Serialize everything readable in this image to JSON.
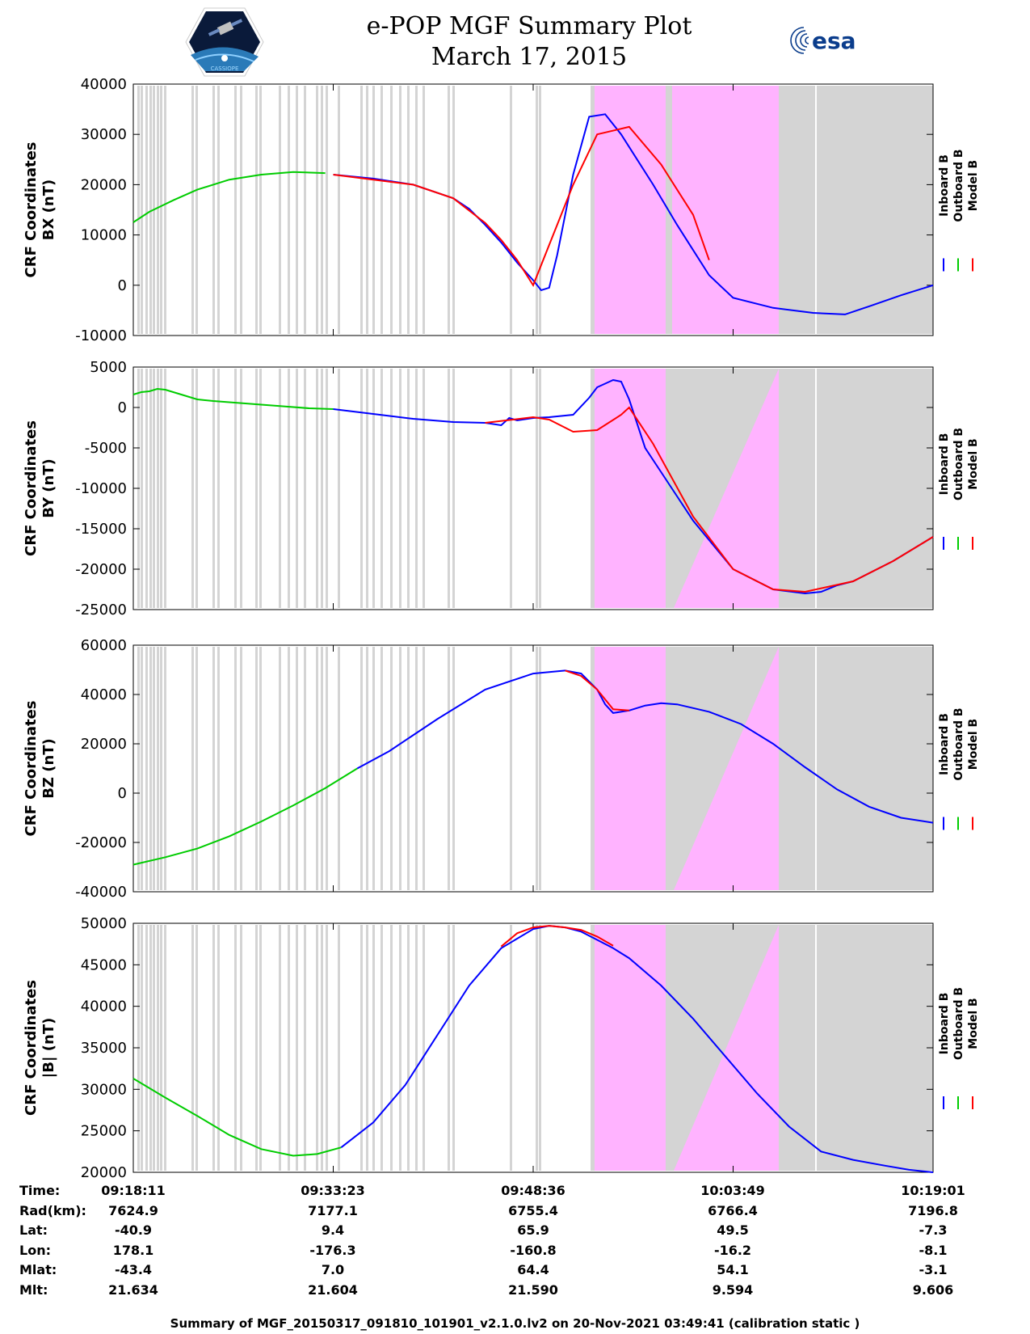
{
  "header": {
    "title_line1": "e-POP MGF Summary Plot",
    "title_line2": "March 17, 2015",
    "logo_left_text": "CASSIOPE",
    "logo_right_text": "esa"
  },
  "legend": [
    "Inboard B",
    "Outboard B",
    "Model B"
  ],
  "colors": {
    "inboard": "#0000ff",
    "outboard": "#00cc00",
    "model": "#ff0000",
    "gap": "#d4d4d4",
    "flag": "#ffb3ff"
  },
  "chart_data": [
    {
      "type": "line",
      "ylabel_line1": "CRF Coordinates",
      "ylabel_line2": "BX (nT)",
      "ylim": [
        -10000,
        40000
      ],
      "yticks": [
        "40000",
        "30000",
        "20000",
        "10000",
        "0",
        "-10000"
      ],
      "ytick_values": [
        40000,
        30000,
        20000,
        10000,
        0,
        -10000
      ],
      "series": [
        {
          "name": "Outboard B",
          "x": [
            0,
            2,
            5,
            8,
            12,
            16,
            20,
            24
          ],
          "values": [
            12500,
            14600,
            16900,
            19000,
            21000,
            22000,
            22500,
            22300
          ]
        },
        {
          "name": "Inboard B",
          "x": [
            25,
            30,
            35,
            40,
            42,
            44,
            46,
            48,
            50,
            51,
            52,
            53,
            55,
            57,
            59,
            61,
            63,
            65,
            68,
            70,
            72,
            75,
            80,
            85,
            89,
            92,
            96,
            100
          ],
          "values": [
            22000,
            21200,
            20000,
            17300,
            15200,
            12000,
            8500,
            4500,
            1000,
            -1000,
            -500,
            6000,
            22000,
            33500,
            34000,
            30000,
            25000,
            20000,
            12000,
            7000,
            2000,
            -2500,
            -4500,
            -5500,
            -5800,
            -4200,
            -2000,
            0
          ]
        },
        {
          "name": "Model B",
          "x": [
            25,
            35,
            40,
            44,
            46,
            48,
            50,
            52,
            55,
            58,
            62,
            66,
            70,
            72
          ],
          "values": [
            22000,
            20000,
            17300,
            12400,
            9000,
            5000,
            0,
            8000,
            20000,
            30000,
            31500,
            24000,
            14000,
            5000
          ]
        }
      ]
    },
    {
      "type": "line",
      "ylabel_line1": "CRF Coordinates",
      "ylabel_line2": "BY (nT)",
      "ylim": [
        -25000,
        5000
      ],
      "yticks": [
        "5000",
        "0",
        "-5000",
        "-10000",
        "-15000",
        "-20000",
        "-25000"
      ],
      "ytick_values": [
        5000,
        0,
        -5000,
        -10000,
        -15000,
        -20000,
        -25000
      ],
      "series": [
        {
          "name": "Outboard B",
          "x": [
            0,
            1,
            2,
            3,
            4,
            6,
            8,
            10,
            14,
            18,
            22,
            25
          ],
          "values": [
            1600,
            1900,
            2000,
            2300,
            2200,
            1600,
            1000,
            800,
            500,
            200,
            -100,
            -200
          ]
        },
        {
          "name": "Inboard B",
          "x": [
            25,
            30,
            35,
            40,
            44,
            46,
            47,
            48,
            50,
            52,
            55,
            57,
            58,
            60,
            61,
            62,
            64,
            66,
            70,
            75,
            80,
            84,
            86,
            88,
            90,
            95,
            100
          ],
          "values": [
            -200,
            -800,
            -1400,
            -1800,
            -1900,
            -2200,
            -1300,
            -1600,
            -1300,
            -1200,
            -900,
            1200,
            2500,
            3400,
            3200,
            1000,
            -5000,
            -8000,
            -14000,
            -20000,
            -22500,
            -23000,
            -22800,
            -22000,
            -21500,
            -19000,
            -16000
          ]
        },
        {
          "name": "Model B",
          "x": [
            44,
            50,
            52,
            55,
            58,
            61,
            62,
            65,
            70,
            75,
            80,
            84,
            90,
            95,
            100
          ],
          "values": [
            -1900,
            -1200,
            -1500,
            -3000,
            -2800,
            -900,
            0,
            -4500,
            -13500,
            -20000,
            -22500,
            -22800,
            -21500,
            -19000,
            -16000
          ]
        }
      ]
    },
    {
      "type": "line",
      "ylabel_line1": "CRF Coordinates",
      "ylabel_line2": "BZ (nT)",
      "ylim": [
        -40000,
        60000
      ],
      "yticks": [
        "60000",
        "40000",
        "20000",
        "0",
        "-20000",
        "-40000"
      ],
      "ytick_values": [
        60000,
        40000,
        20000,
        0,
        -20000,
        -40000
      ],
      "series": [
        {
          "name": "Outboard B",
          "x": [
            0,
            4,
            8,
            12,
            16,
            20,
            24,
            28
          ],
          "values": [
            -29000,
            -26000,
            -22500,
            -17500,
            -11500,
            -5000,
            2000,
            10000
          ]
        },
        {
          "name": "Inboard B",
          "x": [
            28,
            32,
            38,
            44,
            50,
            54,
            56,
            58,
            59,
            60,
            62,
            64,
            66,
            68,
            72,
            76,
            80,
            84,
            88,
            92,
            96,
            100
          ],
          "values": [
            10000,
            17000,
            30000,
            42000,
            48500,
            49700,
            48500,
            42000,
            36000,
            32500,
            33500,
            35500,
            36500,
            36000,
            33000,
            28000,
            20000,
            10500,
            1500,
            -5500,
            -10000,
            -12000
          ]
        },
        {
          "name": "Model B",
          "x": [
            54,
            56,
            58,
            60,
            62
          ],
          "values": [
            49700,
            47500,
            42000,
            34000,
            33500
          ]
        }
      ]
    },
    {
      "type": "line",
      "ylabel_line1": "CRF Coordinates",
      "ylabel_line2": "|B| (nT)",
      "ylim": [
        20000,
        50000
      ],
      "yticks": [
        "50000",
        "45000",
        "40000",
        "35000",
        "30000",
        "25000",
        "20000"
      ],
      "ytick_values": [
        50000,
        45000,
        40000,
        35000,
        30000,
        25000,
        20000
      ],
      "series": [
        {
          "name": "Outboard B",
          "x": [
            0,
            4,
            8,
            12,
            16,
            20,
            23,
            26
          ],
          "values": [
            31300,
            29000,
            26800,
            24500,
            22800,
            22000,
            22200,
            23000
          ]
        },
        {
          "name": "Inboard B",
          "x": [
            26,
            30,
            34,
            38,
            42,
            46,
            50,
            52,
            54,
            56,
            58,
            60,
            62,
            66,
            70,
            74,
            78,
            82,
            86,
            90,
            94,
            97,
            100
          ],
          "values": [
            23000,
            26000,
            30500,
            36500,
            42500,
            47000,
            49300,
            49700,
            49500,
            49000,
            48000,
            47000,
            45800,
            42500,
            38500,
            34000,
            29500,
            25500,
            22500,
            21500,
            20800,
            20300,
            20000
          ]
        },
        {
          "name": "Model B",
          "x": [
            46,
            48,
            50,
            52,
            54,
            56,
            58,
            60
          ],
          "values": [
            47200,
            48800,
            49500,
            49700,
            49500,
            49200,
            48400,
            47300
          ]
        }
      ]
    }
  ],
  "info": {
    "labels": [
      "Time:",
      "Rad(km):",
      "Lat:",
      "Lon:",
      "Mlat:",
      "Mlt:"
    ],
    "columns": [
      [
        "09:18:11",
        "7624.9",
        "-40.9",
        "178.1",
        "-43.4",
        "21.634"
      ],
      [
        "09:33:23",
        "7177.1",
        "9.4",
        "-176.3",
        "7.0",
        "21.604"
      ],
      [
        "09:48:36",
        "6755.4",
        "65.9",
        "-160.8",
        "64.4",
        "21.590"
      ],
      [
        "10:03:49",
        "6766.4",
        "49.5",
        "-16.2",
        "54.1",
        "9.594"
      ],
      [
        "10:19:01",
        "7196.8",
        "-7.3",
        "-8.1",
        "-3.1",
        "9.606"
      ]
    ]
  },
  "footer": "Summary of MGF_20150317_091810_101901_v2.1.0.lv2 on 20-Nov-2021 03:49:41 (calibration static )"
}
